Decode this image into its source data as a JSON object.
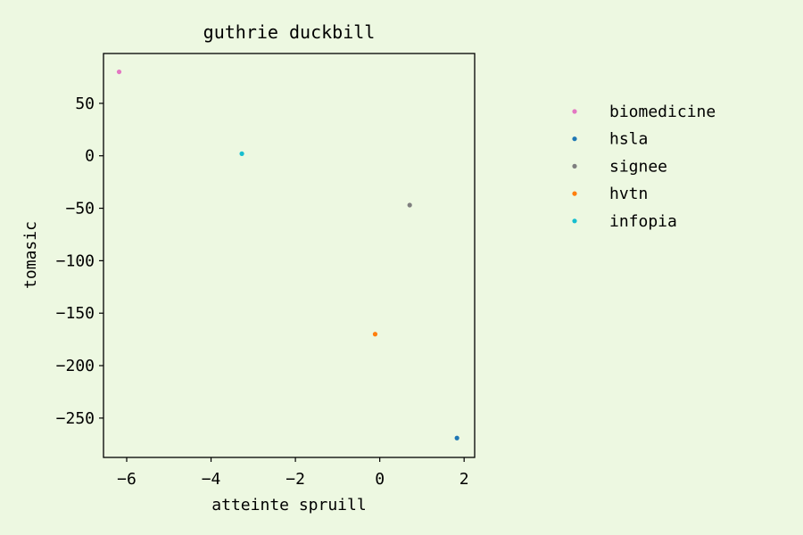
{
  "chart_data": {
    "type": "scatter",
    "title": "guthrie duckbill",
    "xlabel": "atteinte spruill",
    "ylabel": "tomasic",
    "xlim": [
      -6.55,
      2.25
    ],
    "ylim": [
      -287.5,
      97.5
    ],
    "xticks": [
      -6,
      -4,
      -2,
      0,
      2
    ],
    "yticks": [
      50,
      0,
      -50,
      -100,
      -150,
      -200,
      -250
    ],
    "grid": false,
    "legend_position": "right, outside plot",
    "series": [
      {
        "name": "biomedicine",
        "color": "#e377c2",
        "x": [
          -6.18
        ],
        "y": [
          80
        ]
      },
      {
        "name": "hsla",
        "color": "#1f77b4",
        "x": [
          1.83
        ],
        "y": [
          -269
        ]
      },
      {
        "name": "signee",
        "color": "#7f7f7f",
        "x": [
          0.71
        ],
        "y": [
          -47
        ]
      },
      {
        "name": "hvtn",
        "color": "#ff7f0e",
        "x": [
          -0.11
        ],
        "y": [
          -170
        ]
      },
      {
        "name": "infopia",
        "color": "#17becf",
        "x": [
          -3.27
        ],
        "y": [
          2
        ]
      }
    ]
  }
}
